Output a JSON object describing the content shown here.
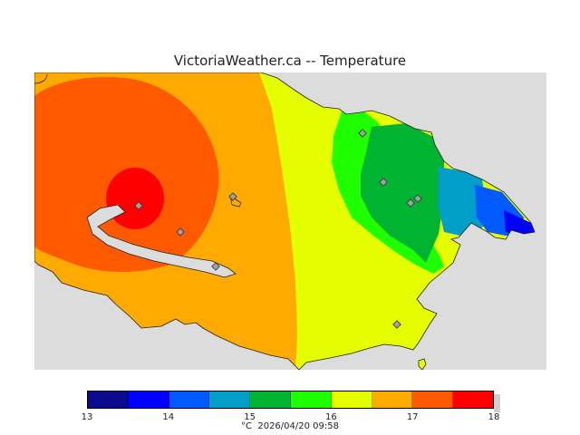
{
  "title": "VictoriaWeather.ca -- Temperature",
  "legend": {
    "unit": "°C",
    "timestamp": "2026/04/20 09:58",
    "colors": [
      "#0a0a8c",
      "#0000ff",
      "#005aff",
      "#009ec8",
      "#00b432",
      "#1eff00",
      "#e6ff00",
      "#ffaa00",
      "#ff5a00",
      "#ff0000"
    ],
    "ticks": [
      "13",
      "14",
      "15",
      "16",
      "17",
      "18"
    ]
  },
  "map": {
    "background_color": "#dcdcdc",
    "station_count": 9
  }
}
